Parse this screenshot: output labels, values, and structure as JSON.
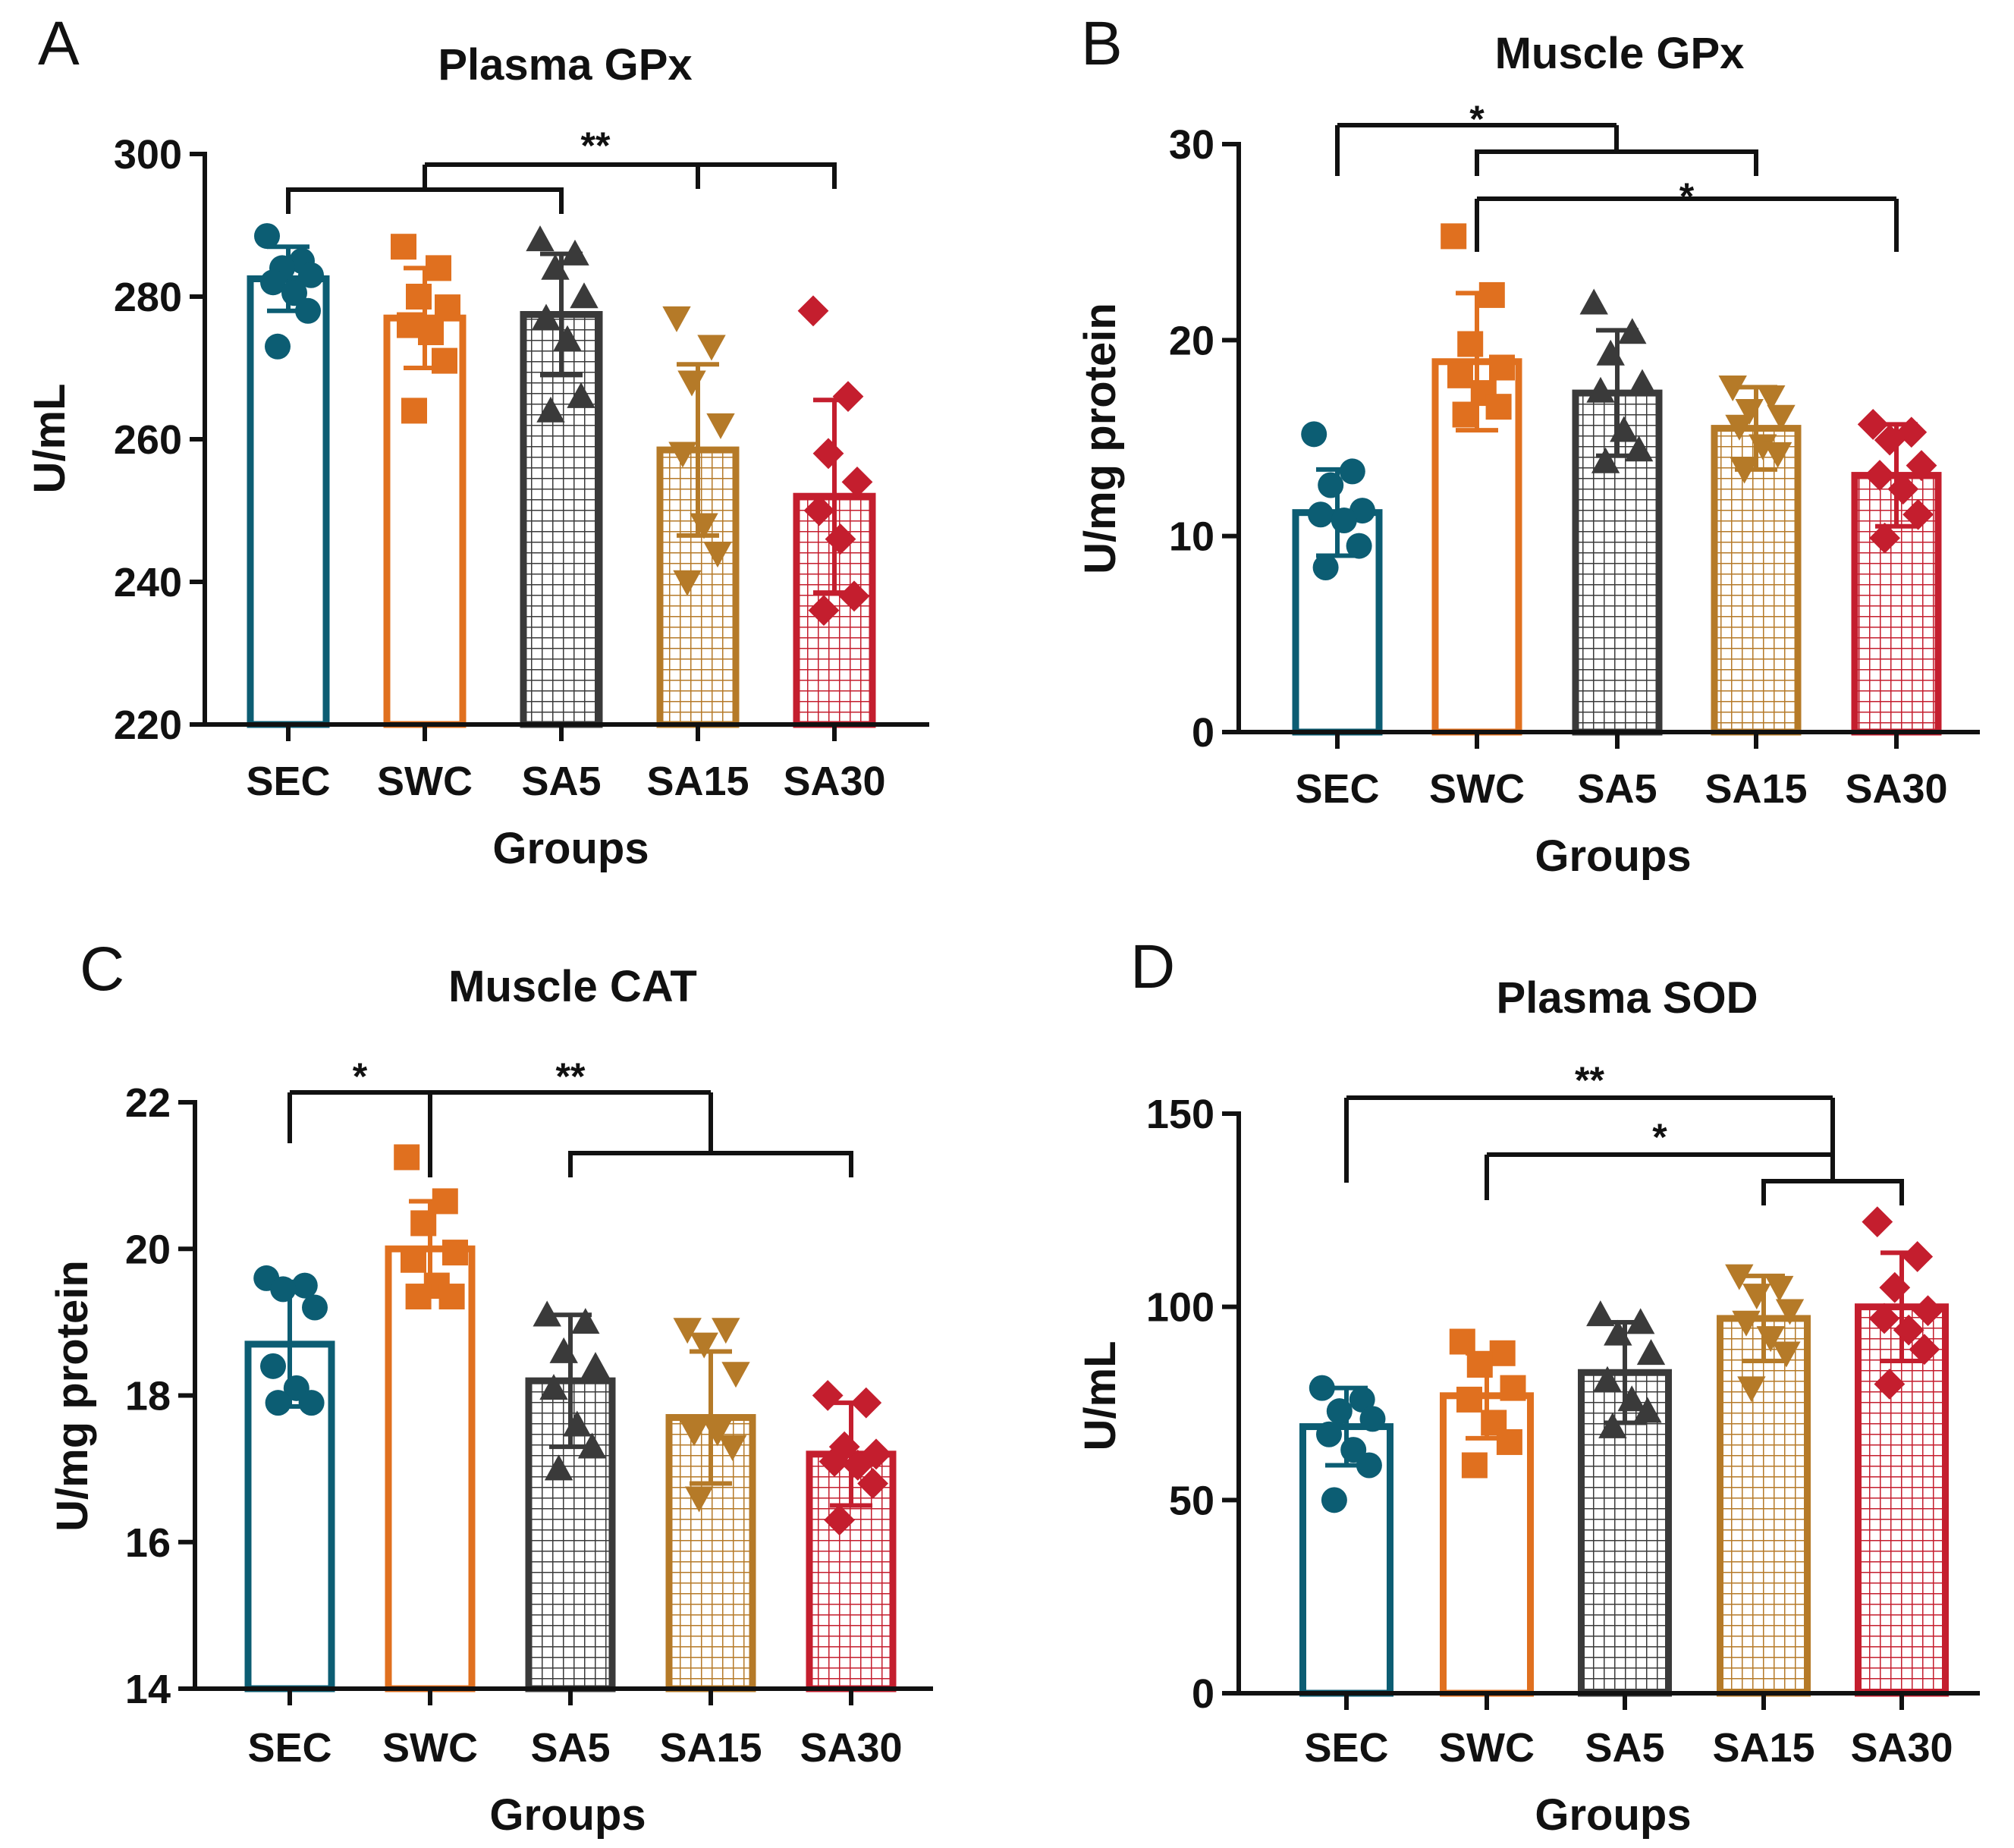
{
  "colors": {
    "SEC": "#0c5d73",
    "SWC": "#e0701f",
    "SA5": "#3a3a3a",
    "SA15": "#b57a28",
    "SA30": "#c41e2e"
  },
  "chart_data": [
    {
      "letter": "A",
      "type": "bar",
      "title": "Plasma GPx",
      "xlabel": "Groups",
      "ylabel": "U/mL",
      "ylim": [
        220,
        300
      ],
      "yticks": [
        220,
        240,
        260,
        280,
        300
      ],
      "categories": [
        "SEC",
        "SWC",
        "SA5",
        "SA15",
        "SA30"
      ],
      "values": [
        282.5,
        277,
        277.5,
        258.5,
        252
      ],
      "sd": [
        4.5,
        7,
        8.5,
        12,
        13.5
      ],
      "points": [
        [
          288.5,
          285,
          284,
          283,
          282,
          280.5,
          278,
          273
        ],
        [
          287,
          284,
          280,
          278.5,
          276,
          275,
          271,
          264
        ],
        [
          288,
          286,
          284,
          280,
          277,
          274,
          266,
          264
        ],
        [
          277,
          273,
          268,
          262,
          258,
          248,
          244,
          240
        ],
        [
          278,
          266,
          258,
          254,
          250,
          246,
          238,
          236
        ]
      ],
      "significance": [
        {
          "label": "**",
          "groups": [
            [
              0,
              2
            ],
            [
              3,
              4
            ]
          ]
        }
      ]
    },
    {
      "letter": "B",
      "type": "bar",
      "title": "Muscle GPx",
      "xlabel": "Groups",
      "ylabel": "U/mg protein",
      "ylim": [
        0,
        30
      ],
      "yticks": [
        0,
        10,
        20,
        30
      ],
      "categories": [
        "SEC",
        "SWC",
        "SA5",
        "SA15",
        "SA30"
      ],
      "values": [
        11.2,
        18.9,
        17.3,
        15.5,
        13.1
      ],
      "sd": [
        2.2,
        3.5,
        3.2,
        2.1,
        2.6
      ],
      "points": [
        [
          15.2,
          13.3,
          12.6,
          11.3,
          11.1,
          10.8,
          9.5,
          8.4
        ],
        [
          25.3,
          22.3,
          19.8,
          18.6,
          18.2,
          17.3,
          16.6,
          16.2
        ],
        [
          21.9,
          20.4,
          19.3,
          17.8,
          17.4,
          15.4,
          14.4,
          13.8
        ],
        [
          17.6,
          17.1,
          16.4,
          16.1,
          15.6,
          14.6,
          14.2,
          13.4
        ],
        [
          15.7,
          15.3,
          14.9,
          13.6,
          13.1,
          12.4,
          11.1,
          9.9
        ]
      ],
      "significance": [
        {
          "label": "*",
          "groups": [
            [
              0
            ],
            [
              1,
              3
            ]
          ]
        },
        {
          "label": "*",
          "groups": [
            [
              1
            ],
            [
              4
            ]
          ]
        }
      ]
    },
    {
      "letter": "C",
      "type": "bar",
      "title": "Muscle CAT",
      "xlabel": "Groups",
      "ylabel": "U/mg protein",
      "ylim": [
        14,
        22
      ],
      "yticks": [
        14,
        16,
        18,
        20,
        22
      ],
      "categories": [
        "SEC",
        "SWC",
        "SA5",
        "SA15",
        "SA30"
      ],
      "values": [
        18.7,
        20.0,
        18.2,
        17.7,
        17.2
      ],
      "sd": [
        0.85,
        0.65,
        0.9,
        0.9,
        0.7
      ],
      "points": [
        [
          19.6,
          19.5,
          19.45,
          19.2,
          18.4,
          18.1,
          17.9,
          17.9
        ],
        [
          21.25,
          20.65,
          20.35,
          19.95,
          19.85,
          19.5,
          19.35,
          19.35
        ],
        [
          19.1,
          19.0,
          18.6,
          18.4,
          18.1,
          17.6,
          17.3,
          17.0
        ],
        [
          18.9,
          18.9,
          18.7,
          18.3,
          17.5,
          17.5,
          17.3,
          16.6
        ],
        [
          18.0,
          17.9,
          17.3,
          17.2,
          17.1,
          17.05,
          16.8,
          16.3
        ]
      ],
      "significance": [
        {
          "label": "*",
          "groups": [
            [
              0
            ],
            [
              1
            ]
          ]
        },
        {
          "label": "**",
          "groups": [
            [
              1
            ],
            [
              2,
              4
            ]
          ]
        }
      ]
    },
    {
      "letter": "D",
      "type": "bar",
      "title": "Plasma SOD",
      "xlabel": "Groups",
      "ylabel": "U/mL",
      "ylim": [
        0,
        150
      ],
      "yticks": [
        0,
        50,
        100,
        150
      ],
      "categories": [
        "SEC",
        "SWC",
        "SA5",
        "SA15",
        "SA30"
      ],
      "values": [
        69,
        77,
        83,
        97,
        100
      ],
      "sd": [
        10,
        11,
        13,
        11,
        14
      ],
      "points": [
        [
          79,
          76,
          73,
          71,
          67,
          63,
          59,
          50
        ],
        [
          91,
          88,
          85,
          79,
          76,
          70,
          65,
          59
        ],
        [
          98,
          96,
          93,
          88,
          81,
          76,
          73,
          69
        ],
        [
          108,
          105,
          103,
          99,
          96,
          92,
          88,
          79
        ],
        [
          122,
          113,
          105,
          99,
          97,
          94,
          89,
          80
        ]
      ],
      "significance": [
        {
          "label": "**",
          "groups": [
            [
              0
            ],
            [
              3,
              4
            ]
          ]
        },
        {
          "label": "*",
          "groups": [
            [
              1
            ],
            [
              3,
              4
            ]
          ]
        }
      ]
    }
  ]
}
